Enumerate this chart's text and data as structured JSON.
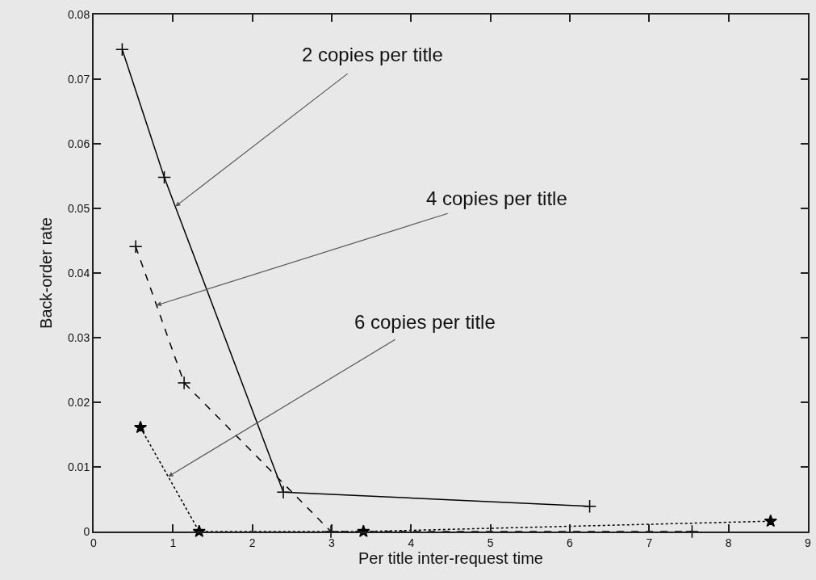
{
  "chart_data": {
    "type": "line",
    "xlabel": "Per title inter-request time",
    "ylabel": "Back-order rate",
    "series": [
      {
        "color": "#000000",
        "marker": "cross",
        "line_style": "solid",
        "x": [
          0.36,
          0.89,
          2.39,
          6.25
        ],
        "values": [
          0.0746,
          0.0548,
          0.0061,
          0.0039
        ]
      },
      {
        "color": "#000000",
        "marker": "cross",
        "line_style": "dashed",
        "x": [
          0.53,
          1.14,
          2.99,
          7.54
        ],
        "values": [
          0.0441,
          0.023,
          0,
          0
        ]
      },
      {
        "color": "#000000",
        "marker": "star",
        "line_style": "dotted",
        "x": [
          0.59,
          1.33,
          3.4,
          8.53
        ],
        "values": [
          0.0161,
          0,
          0,
          0.0016
        ]
      }
    ],
    "annotations": [
      {
        "text": "2 copies per title",
        "x": 1.03,
        "y": 0.0503
      },
      {
        "text": "4 copies per title",
        "x": 0.79,
        "y": 0.035
      },
      {
        "text": "6 copies per title",
        "x": 0.94,
        "y": 0.0085
      }
    ],
    "xlim": [
      0,
      9
    ],
    "xticks": [
      0,
      1,
      2,
      3,
      4,
      5,
      6,
      7,
      8,
      9
    ],
    "ylim": [
      0,
      0.08
    ],
    "yticks": [
      0,
      0.01,
      0.02,
      0.03,
      0.04,
      0.05,
      0.06,
      0.07,
      0.08
    ],
    "grid": false
  }
}
